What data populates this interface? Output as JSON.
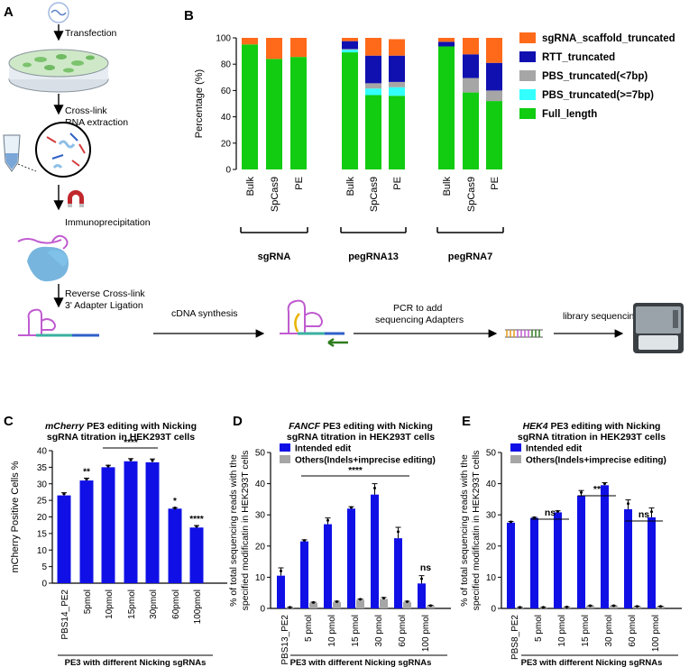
{
  "panels": {
    "A": "A",
    "B": "B",
    "C": "C",
    "D": "D",
    "E": "E"
  },
  "workflow": {
    "transfection": "Transfection",
    "crosslink_1": "Cross-link",
    "crosslink_2": "RNA extraction",
    "immunoprecipitation": "Immunoprecipitation",
    "reverse_1": "Reverse Cross-link",
    "reverse_2": "3' Adapter Ligation",
    "cdna": "cDNA synthesis",
    "pcr_1": "PCR to add",
    "pcr_2": "sequencing Adapters",
    "library": "library sequencing"
  },
  "colors": {
    "blue": "#1010e6",
    "gray": "#a6a6a6",
    "orange": "#ff6a1a",
    "navy": "#1010b0",
    "cyan": "#33ffff",
    "green": "#11cc11"
  },
  "chart_data": [
    {
      "panel": "B",
      "type": "bar",
      "stacked": true,
      "ylabel": "Percentage (%)",
      "ylim": [
        0,
        100
      ],
      "yticks": [
        "0",
        "20",
        "40",
        "60",
        "80",
        "100"
      ],
      "categories": [
        "Bulk",
        "SpCas9",
        "PE",
        "Bulk",
        "SpCas9",
        "PE",
        "Bulk",
        "SpCas9",
        "PE"
      ],
      "groups": [
        {
          "label": "sgRNA",
          "indices": [
            0,
            1,
            2
          ]
        },
        {
          "label": "pegRNA13",
          "indices": [
            3,
            4,
            5
          ]
        },
        {
          "label": "pegRNA7",
          "indices": [
            6,
            7,
            8
          ]
        }
      ],
      "legend": [
        "sgRNA_scaffold_truncated",
        "RTT_truncated",
        "PBS_truncated(<7bp)",
        "PBS_truncated(>=7bp)",
        "Full_length"
      ],
      "series": [
        {
          "name": "Full_length",
          "color": "#11cc11",
          "values": [
            95,
            84,
            85.5,
            89,
            56.5,
            56,
            93.5,
            58.5,
            52
          ]
        },
        {
          "name": "PBS_truncated(>=7bp)",
          "color": "#33ffff",
          "values": [
            0,
            0,
            0,
            2,
            5,
            6.5,
            0,
            0,
            0
          ]
        },
        {
          "name": "PBS_truncated(<7bp)",
          "color": "#a6a6a6",
          "values": [
            0,
            0,
            0,
            0.5,
            4,
            4,
            0,
            11,
            8
          ]
        },
        {
          "name": "RTT_truncated",
          "color": "#1010b0",
          "values": [
            0,
            0,
            0,
            6,
            21,
            20,
            3.5,
            18,
            21
          ]
        },
        {
          "name": "sgRNA_scaffold_truncated",
          "color": "#ff6a1a",
          "values": [
            5,
            16,
            14.5,
            2.5,
            13.5,
            12.5,
            3,
            12.5,
            19
          ]
        }
      ]
    },
    {
      "panel": "C",
      "type": "bar",
      "title_italic": "mCherry",
      "title_rest": " PE3 editing with Nicking",
      "title_line2": "sgRNA titration in HEK293T cells",
      "ylabel": "mCherry Positive Cells %",
      "xlabel": "PE3 with different Nicking sgRNAs",
      "ylim": [
        0,
        40
      ],
      "yticks": [
        "0",
        "5",
        "10",
        "15",
        "20",
        "25",
        "30",
        "35",
        "40"
      ],
      "categories": [
        "PBS14_PE2",
        "5pmol",
        "10pmol",
        "15pmol",
        "30pmol",
        "60pmol",
        "100pmol"
      ],
      "values": [
        26.5,
        31,
        35,
        36.8,
        36.5,
        22.5,
        16.8
      ],
      "errors": [
        0.8,
        0.7,
        0.6,
        0.8,
        1.0,
        0.3,
        0.6
      ],
      "significance": [
        "",
        "**",
        "",
        "",
        "",
        "*",
        "****"
      ],
      "bracket_label": "****"
    },
    {
      "panel": "D",
      "type": "bar",
      "title_italic": "FANCF",
      "title_rest": " PE3 editing with Nicking",
      "title_line2": "sgRNA titration in HEK293T cells",
      "ylabel_1": "% of total sequencing reads with the",
      "ylabel_2": "specified modificatin in HEK293T cells",
      "xlabel": "PE3 with different Nicking sgRNAs",
      "ylim": [
        0,
        50
      ],
      "yticks": [
        "0",
        "10",
        "20",
        "30",
        "40",
        "50"
      ],
      "categories": [
        "PBS13_PE2",
        "5 pmol",
        "10 pmol",
        "15 pmol",
        "30 pmol",
        "60 pmol",
        "100 pmol"
      ],
      "series": [
        {
          "name": "Intended edit",
          "color": "#1010e6",
          "values": [
            10.5,
            21.5,
            27,
            32,
            36.5,
            22.5,
            8
          ],
          "errors": [
            2.5,
            0.5,
            2,
            0.6,
            3.5,
            3.5,
            2.5
          ]
        },
        {
          "name": "Others(Indels+imprecise editing)",
          "color": "#a6a6a6",
          "values": [
            0.3,
            1.8,
            2,
            2.8,
            3,
            2,
            0.8
          ],
          "errors": [
            0.1,
            0.2,
            0.3,
            0.2,
            0.5,
            0.3,
            0.2
          ]
        }
      ],
      "bracket_label": "****",
      "ns_label": "ns"
    },
    {
      "panel": "E",
      "type": "bar",
      "title_italic": "HEK4",
      "title_rest": "  PE3 editing with Nicking",
      "title_line2": "sgRNA titration in HEK293T cells",
      "ylabel_1": "% of total sequencing reads with the",
      "ylabel_2": "specified modificatin in HEK293T cells",
      "xlabel": "PE3 with different Nicking sgRNAs",
      "ylim": [
        0,
        50
      ],
      "yticks": [
        "0",
        "10",
        "20",
        "30",
        "40",
        "50"
      ],
      "categories": [
        "PBS8_PE2",
        "5 pmol",
        "10 pmol",
        "15 pmol",
        "30 pmol",
        "60 pmol",
        "100 pmol"
      ],
      "series": [
        {
          "name": "Intended edit",
          "color": "#1010e6",
          "values": [
            27.5,
            29,
            30.8,
            36.2,
            39.5,
            31.8,
            29.2
          ],
          "errors": [
            0.4,
            0.2,
            0.5,
            1.6,
            0.8,
            3,
            3
          ]
        },
        {
          "name": "Others(Indels+imprecise editing)",
          "color": "#a6a6a6",
          "values": [
            0.3,
            0.3,
            0.4,
            0.8,
            0.8,
            0.6,
            0.6
          ],
          "errors": [
            0.1,
            0.1,
            0.1,
            0.1,
            0.1,
            0.1,
            0.1
          ]
        }
      ],
      "brackets": [
        "ns",
        "**",
        "ns"
      ]
    }
  ]
}
